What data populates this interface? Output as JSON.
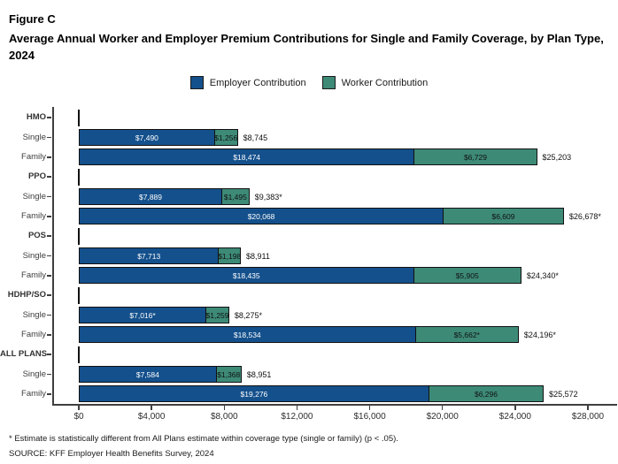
{
  "header": {
    "figure_label": "Figure C",
    "title": "Average Annual Worker and Employer Premium Contributions for Single and Family Coverage, by Plan Type, 2024"
  },
  "legend": [
    {
      "label": "Employer Contribution",
      "color": "#14508C"
    },
    {
      "label": "Worker Contribution",
      "color": "#3D8A77"
    }
  ],
  "colors": {
    "employer": "#14508C",
    "worker": "#3D8A77",
    "bar_border": "#111111",
    "axis": "#3f3f3f"
  },
  "chart_data": {
    "type": "bar",
    "orientation": "horizontal",
    "stacked": true,
    "title": "Average Annual Worker and Employer Premium Contributions for Single and Family Coverage, by Plan Type, 2024",
    "xlabel": "",
    "ylabel": "",
    "xlim": [
      0,
      28000
    ],
    "x_tick_values": [
      0,
      4000,
      8000,
      12000,
      16000,
      20000,
      24000,
      28000
    ],
    "x_tick_labels": [
      "$0",
      "$4,000",
      "$8,000",
      "$12,000",
      "$16,000",
      "$20,000",
      "$24,000",
      "$28,000"
    ],
    "grid": false,
    "legend_position": "top-center",
    "series_names": [
      "Employer Contribution",
      "Worker Contribution"
    ],
    "groups": [
      {
        "label": "HMO",
        "rows": [
          {
            "label": "Single",
            "employer": 7490,
            "worker": 1256,
            "total": 8745,
            "employer_label": "$7,490",
            "worker_label": "$1,256",
            "total_label": "$8,745"
          },
          {
            "label": "Family",
            "employer": 18474,
            "worker": 6729,
            "total": 25203,
            "employer_label": "$18,474",
            "worker_label": "$6,729",
            "total_label": "$25,203"
          }
        ]
      },
      {
        "label": "PPO",
        "rows": [
          {
            "label": "Single",
            "employer": 7889,
            "worker": 1495,
            "total": 9383,
            "employer_label": "$7,889",
            "worker_label": "$1,495",
            "total_label": "$9,383*"
          },
          {
            "label": "Family",
            "employer": 20068,
            "worker": 6609,
            "total": 26678,
            "employer_label": "$20,068",
            "worker_label": "$6,609",
            "total_label": "$26,678*"
          }
        ]
      },
      {
        "label": "POS",
        "rows": [
          {
            "label": "Single",
            "employer": 7713,
            "worker": 1198,
            "total": 8911,
            "employer_label": "$7,713",
            "worker_label": "$1,198",
            "total_label": "$8,911"
          },
          {
            "label": "Family",
            "employer": 18435,
            "worker": 5905,
            "total": 24340,
            "employer_label": "$18,435",
            "worker_label": "$5,905",
            "total_label": "$24,340*"
          }
        ]
      },
      {
        "label": "HDHP/SO",
        "rows": [
          {
            "label": "Single",
            "employer": 7016,
            "worker": 1259,
            "total": 8275,
            "employer_label": "$7,016*",
            "worker_label": "$1,259",
            "total_label": "$8,275*"
          },
          {
            "label": "Family",
            "employer": 18534,
            "worker": 5662,
            "total": 24196,
            "employer_label": "$18,534",
            "worker_label": "$5,662*",
            "total_label": "$24,196*"
          }
        ]
      },
      {
        "label": "ALL PLANS",
        "rows": [
          {
            "label": "Single",
            "employer": 7584,
            "worker": 1368,
            "total": 8951,
            "employer_label": "$7,584",
            "worker_label": "$1,368",
            "total_label": "$8,951"
          },
          {
            "label": "Family",
            "employer": 19276,
            "worker": 6296,
            "total": 25572,
            "employer_label": "$19,276",
            "worker_label": "$6,296",
            "total_label": "$25,572"
          }
        ]
      }
    ]
  },
  "footnote": "* Estimate is statistically different from All Plans estimate within coverage type (single or family) (p < .05).",
  "source": "SOURCE: KFF Employer Health Benefits Survey, 2024"
}
